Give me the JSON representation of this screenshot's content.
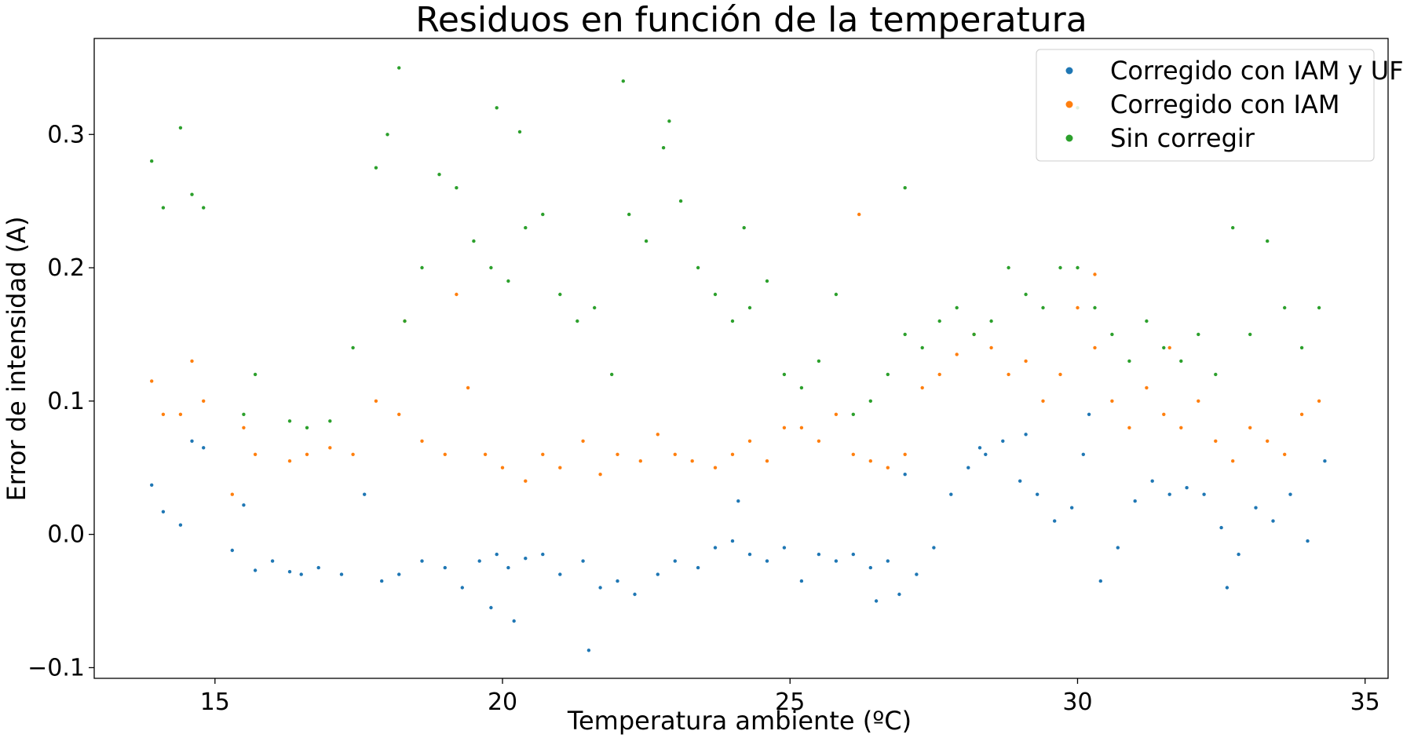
{
  "chart_data": {
    "type": "scatter",
    "title": "Residuos en función de la temperatura",
    "xlabel": "Temperatura ambiente (ºC)",
    "ylabel": "Error de intensidad (A)",
    "xlim": [
      12.9,
      35.4
    ],
    "ylim": [
      -0.108,
      0.372
    ],
    "xticks": [
      15,
      20,
      25,
      30,
      35
    ],
    "xtick_labels": [
      "15",
      "20",
      "25",
      "30",
      "35"
    ],
    "yticks": [
      -0.1,
      0.0,
      0.1,
      0.2,
      0.3
    ],
    "ytick_labels": [
      "−0.1",
      "0.0",
      "0.1",
      "0.2",
      "0.3"
    ],
    "grid": false,
    "legend_position": "top-right",
    "series": [
      {
        "name": "Corregido con IAM y UF",
        "color": "#1f77b4",
        "x": [
          13.9,
          14.1,
          14.4,
          14.6,
          14.8,
          15.3,
          15.5,
          15.7,
          16.0,
          16.3,
          16.5,
          16.8,
          17.2,
          17.6,
          17.9,
          18.2,
          18.6,
          19.0,
          19.3,
          19.6,
          19.9,
          20.1,
          20.4,
          20.7,
          21.0,
          21.4,
          21.7,
          22.0,
          22.3,
          22.7,
          23.0,
          23.4,
          23.7,
          24.0,
          24.3,
          24.6,
          24.9,
          25.2,
          25.5,
          25.8,
          26.1,
          26.4,
          26.7,
          26.9,
          27.2,
          27.5,
          27.8,
          28.1,
          28.4,
          28.7,
          29.0,
          29.3,
          29.6,
          29.9,
          30.1,
          30.4,
          30.7,
          31.0,
          31.3,
          31.6,
          31.9,
          32.2,
          32.5,
          32.8,
          33.1,
          33.4,
          33.7,
          34.0,
          34.3,
          19.8,
          20.2,
          24.1,
          26.5,
          27.0,
          30.2,
          32.6,
          21.5,
          28.3,
          29.1
        ],
        "y": [
          0.037,
          0.017,
          0.007,
          0.07,
          0.065,
          -0.012,
          0.022,
          -0.027,
          -0.02,
          -0.028,
          -0.03,
          -0.025,
          -0.03,
          0.03,
          -0.035,
          -0.03,
          -0.02,
          -0.025,
          -0.04,
          -0.02,
          -0.015,
          -0.025,
          -0.018,
          -0.015,
          -0.03,
          -0.02,
          -0.04,
          -0.035,
          -0.045,
          -0.03,
          -0.02,
          -0.025,
          -0.01,
          -0.005,
          -0.015,
          -0.02,
          -0.01,
          -0.035,
          -0.015,
          -0.02,
          -0.015,
          -0.025,
          -0.02,
          -0.045,
          -0.03,
          -0.01,
          0.03,
          0.05,
          0.06,
          0.07,
          0.04,
          0.03,
          0.01,
          0.02,
          0.06,
          -0.035,
          -0.01,
          0.025,
          0.04,
          0.03,
          0.035,
          0.03,
          0.005,
          -0.015,
          0.02,
          0.01,
          0.03,
          -0.005,
          0.055,
          -0.055,
          -0.065,
          0.025,
          -0.05,
          0.045,
          0.09,
          -0.04,
          -0.087,
          0.065,
          0.075
        ]
      },
      {
        "name": "Corregido con IAM",
        "color": "#ff7f0e",
        "x": [
          13.9,
          14.1,
          14.4,
          14.6,
          14.8,
          15.3,
          15.5,
          15.7,
          16.3,
          16.6,
          17.0,
          17.4,
          17.8,
          18.2,
          18.6,
          19.0,
          19.4,
          19.7,
          20.0,
          20.4,
          20.7,
          21.0,
          21.4,
          21.7,
          22.0,
          22.4,
          22.7,
          23.0,
          23.3,
          23.7,
          24.0,
          24.3,
          24.6,
          24.9,
          25.2,
          25.5,
          25.8,
          26.1,
          26.4,
          26.7,
          27.0,
          27.3,
          27.6,
          27.9,
          28.2,
          28.5,
          28.8,
          29.1,
          29.4,
          29.7,
          30.0,
          30.3,
          30.6,
          30.9,
          31.2,
          31.5,
          31.8,
          32.1,
          32.4,
          32.7,
          33.0,
          33.3,
          33.6,
          33.9,
          34.2,
          18.3,
          19.2,
          26.2,
          30.3,
          31.6
        ],
        "y": [
          0.115,
          0.09,
          0.09,
          0.13,
          0.1,
          0.03,
          0.08,
          0.06,
          0.055,
          0.06,
          0.065,
          0.06,
          0.1,
          0.09,
          0.07,
          0.06,
          0.11,
          0.06,
          0.05,
          0.04,
          0.06,
          0.05,
          0.07,
          0.045,
          0.06,
          0.055,
          0.075,
          0.06,
          0.055,
          0.05,
          0.06,
          0.07,
          0.055,
          0.08,
          0.08,
          0.07,
          0.09,
          0.06,
          0.055,
          0.05,
          0.06,
          0.11,
          0.12,
          0.135,
          0.15,
          0.14,
          0.12,
          0.13,
          0.1,
          0.12,
          0.17,
          0.14,
          0.1,
          0.08,
          0.11,
          0.09,
          0.08,
          0.1,
          0.07,
          0.055,
          0.08,
          0.07,
          0.06,
          0.09,
          0.1,
          0.16,
          0.18,
          0.24,
          0.195,
          0.14
        ]
      },
      {
        "name": "Sin corregir",
        "color": "#2ca02c",
        "x": [
          13.9,
          14.1,
          14.4,
          14.6,
          14.8,
          15.5,
          15.7,
          16.3,
          16.6,
          17.0,
          17.4,
          17.8,
          18.0,
          18.3,
          18.6,
          18.9,
          19.2,
          19.5,
          19.8,
          20.1,
          20.4,
          20.7,
          21.0,
          21.3,
          21.6,
          21.9,
          22.2,
          22.5,
          22.8,
          23.1,
          23.4,
          23.7,
          24.0,
          24.3,
          24.6,
          24.9,
          25.2,
          25.5,
          25.8,
          26.1,
          26.4,
          26.7,
          27.0,
          27.3,
          27.6,
          27.9,
          28.2,
          28.5,
          28.8,
          29.1,
          29.4,
          29.7,
          30.0,
          30.3,
          30.6,
          30.9,
          31.2,
          31.5,
          31.8,
          32.1,
          32.4,
          32.7,
          33.0,
          33.3,
          33.6,
          33.9,
          34.2,
          18.2,
          19.9,
          22.1,
          22.9,
          20.3,
          27.0,
          30.0,
          24.2
        ],
        "y": [
          0.28,
          0.245,
          0.305,
          0.255,
          0.245,
          0.09,
          0.12,
          0.085,
          0.08,
          0.085,
          0.14,
          0.275,
          0.3,
          0.16,
          0.2,
          0.27,
          0.26,
          0.22,
          0.2,
          0.19,
          0.23,
          0.24,
          0.18,
          0.16,
          0.17,
          0.12,
          0.24,
          0.22,
          0.29,
          0.25,
          0.2,
          0.18,
          0.16,
          0.17,
          0.19,
          0.12,
          0.11,
          0.13,
          0.18,
          0.09,
          0.1,
          0.12,
          0.15,
          0.14,
          0.16,
          0.17,
          0.15,
          0.16,
          0.2,
          0.18,
          0.17,
          0.2,
          0.2,
          0.17,
          0.15,
          0.13,
          0.16,
          0.14,
          0.13,
          0.15,
          0.12,
          0.23,
          0.15,
          0.22,
          0.17,
          0.14,
          0.17,
          0.35,
          0.32,
          0.34,
          0.31,
          0.302,
          0.26,
          0.32,
          0.23
        ]
      }
    ]
  }
}
